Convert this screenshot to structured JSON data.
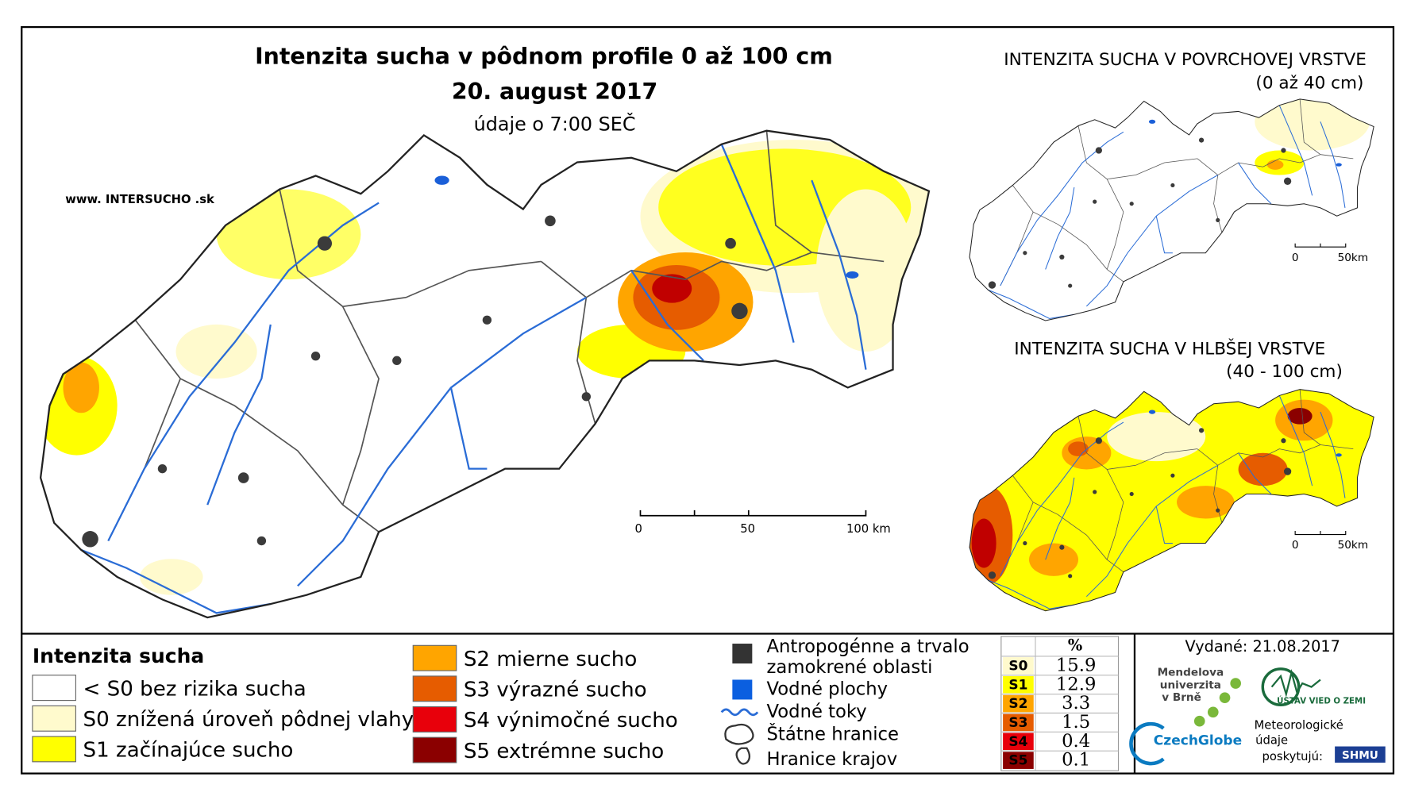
{
  "header": {
    "title": "Intenzita sucha v pôdnom profile 0 až 100 cm",
    "date": "20. august 2017",
    "time_note": "údaje o 7:00 SEČ",
    "website": "www. INTERSUCHO .sk"
  },
  "main_scale": [
    "0",
    "50",
    "100 km"
  ],
  "insets": [
    {
      "title": "INTENZITA SUCHA V POVRCHOVEJ VRSTVE",
      "subtitle": "(0 až 40 cm)",
      "scale": [
        "0",
        "50km"
      ]
    },
    {
      "title": "INTENZITA SUCHA V HLBŠEJ VRSTVE",
      "subtitle": "(40 - 100 cm)",
      "scale": [
        "0",
        "50km"
      ]
    }
  ],
  "legend": {
    "title": "Intenzita sucha",
    "items": [
      {
        "label": "< S0 bez rizika sucha",
        "color": "#ffffff"
      },
      {
        "label": "S0 znížená úroveň pôdnej vlahy",
        "color": "#fffacd"
      },
      {
        "label": "S1 začínajúce sucho",
        "color": "#ffff00"
      },
      {
        "label": "S2 mierne sucho",
        "color": "#ffa500"
      },
      {
        "label": "S3 výrazné sucho",
        "color": "#e65c00"
      },
      {
        "label": "S4 výnimočné sucho",
        "color": "#e8000b"
      },
      {
        "label": "S5 extrémne sucho",
        "color": "#8b0000"
      }
    ]
  },
  "map_legend": {
    "anthropogenic": [
      "Antropogénne a trvalo",
      "zamokrené oblasti"
    ],
    "water_bodies": "Vodné plochy",
    "rivers": "Vodné toky",
    "state_borders": "Štátne hranice",
    "regional_borders": "Hranice krajov"
  },
  "table": {
    "header": "%",
    "rows": [
      {
        "class": "S0",
        "value": 15.9,
        "color": "#fffacd"
      },
      {
        "class": "S1",
        "value": 12.9,
        "color": "#ffff00"
      },
      {
        "class": "S2",
        "value": 3.3,
        "color": "#ffa500"
      },
      {
        "class": "S3",
        "value": 1.5,
        "color": "#e65c00"
      },
      {
        "class": "S4",
        "value": 0.4,
        "color": "#e8000b"
      },
      {
        "class": "S5",
        "value": 0.1,
        "color": "#8b0000"
      }
    ]
  },
  "issued": "Vydané: 21.08.2017",
  "logos": {
    "mendel": [
      "Mendelova",
      "univerzita",
      "v Brně"
    ],
    "czechglobe": "CzechGlobe",
    "ustav": "ÚSTAV VIED O ZEMI",
    "meteo": [
      "Meteorologické",
      "údaje",
      "poskytujú:"
    ],
    "shmu": "SHMU"
  }
}
